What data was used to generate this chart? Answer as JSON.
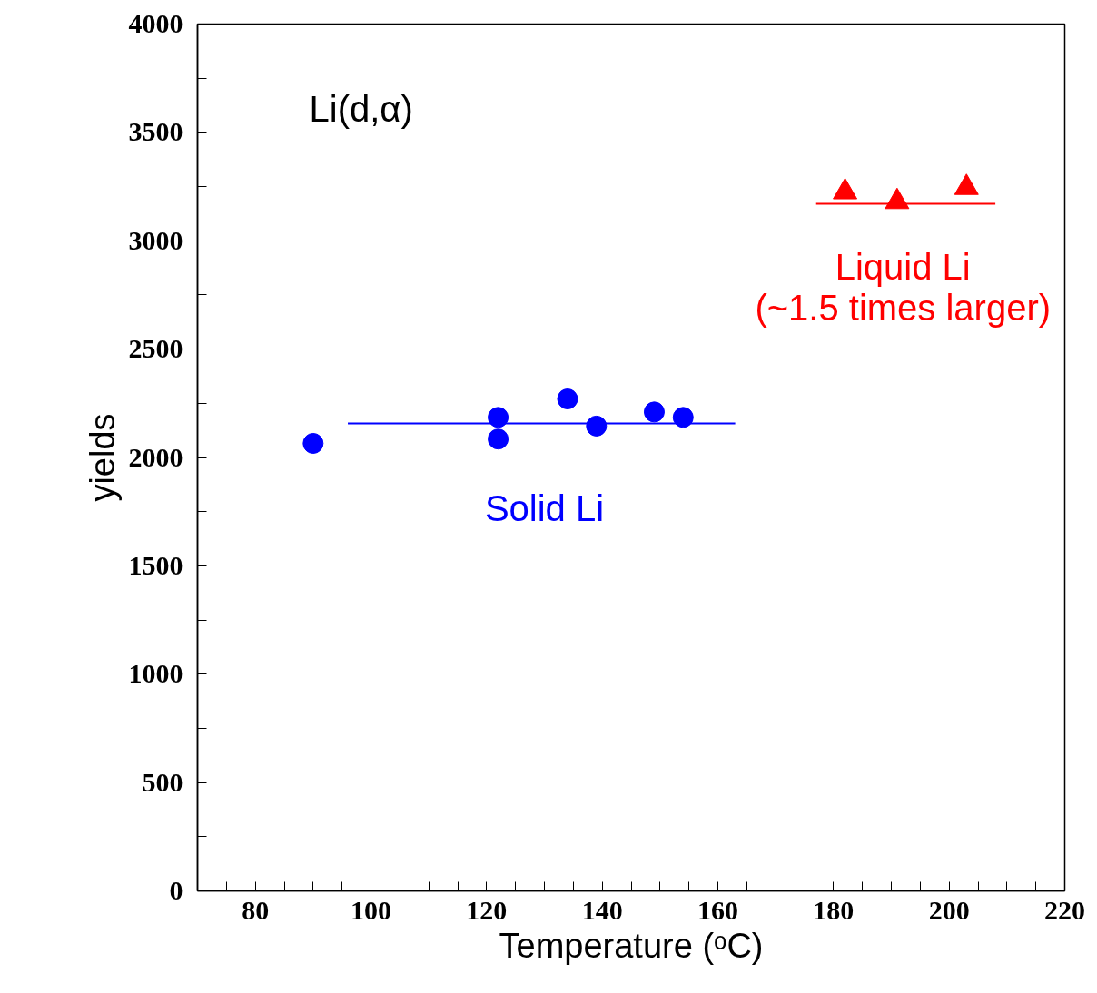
{
  "chart_data": {
    "type": "scatter",
    "xlabel": "Temperature (ᵒC)",
    "ylabel": "yields",
    "annotations": [
      "Li(d,α)"
    ],
    "xlim": [
      70,
      220
    ],
    "ylim": [
      0,
      4000
    ],
    "xticks": [
      {
        "value": 70,
        "label": null
      },
      {
        "value": 75,
        "label": null
      },
      80,
      {
        "value": 85,
        "label": null
      },
      {
        "value": 90,
        "label": null
      },
      {
        "value": 95,
        "label": null
      },
      100,
      {
        "value": 105,
        "label": null
      },
      {
        "value": 110,
        "label": null
      },
      {
        "value": 115,
        "label": null
      },
      120,
      {
        "value": 125,
        "label": null
      },
      {
        "value": 130,
        "label": null
      },
      {
        "value": 135,
        "label": null
      },
      140,
      {
        "value": 145,
        "label": null
      },
      {
        "value": 150,
        "label": null
      },
      {
        "value": 155,
        "label": null
      },
      160,
      {
        "value": 165,
        "label": null
      },
      {
        "value": 170,
        "label": null
      },
      {
        "value": 175,
        "label": null
      },
      180,
      {
        "value": 185,
        "label": null
      },
      {
        "value": 190,
        "label": null
      },
      {
        "value": 195,
        "label": null
      },
      200,
      {
        "value": 205,
        "label": null
      },
      {
        "value": 210,
        "label": null
      },
      {
        "value": 215,
        "label": null
      },
      220
    ],
    "yticks": [
      0,
      {
        "value": 250,
        "label": null
      },
      500,
      {
        "value": 750,
        "label": null
      },
      1000,
      {
        "value": 1250,
        "label": null
      },
      1500,
      {
        "value": 1750,
        "label": null
      },
      2000,
      {
        "value": 2250,
        "label": null
      },
      2500,
      {
        "value": 2750,
        "label": null
      },
      3000,
      {
        "value": 3250,
        "label": null
      },
      3500,
      {
        "value": 3750,
        "label": null
      },
      4000
    ],
    "grid": false,
    "series": [
      {
        "name": "Solid Li",
        "color": "#0000ff",
        "marker": "circle",
        "x": [
          90,
          122,
          122,
          134,
          139,
          149,
          154
        ],
        "values": [
          2065,
          2185,
          2085,
          2270,
          2145,
          2210,
          2185
        ]
      },
      {
        "name": "Liquid Li\n(~1.5 times larger)",
        "color": "#ff0000",
        "marker": "triangle",
        "x": [
          182,
          191,
          203
        ],
        "values": [
          3225,
          3180,
          3245
        ]
      },
      {
        "type": "line",
        "color": "#0000ff",
        "x": [
          96,
          163
        ],
        "values": [
          2157,
          2157
        ]
      },
      {
        "type": "line",
        "color": "#ff0000",
        "x": [
          177,
          208
        ],
        "values": [
          3171,
          3171
        ]
      }
    ]
  }
}
